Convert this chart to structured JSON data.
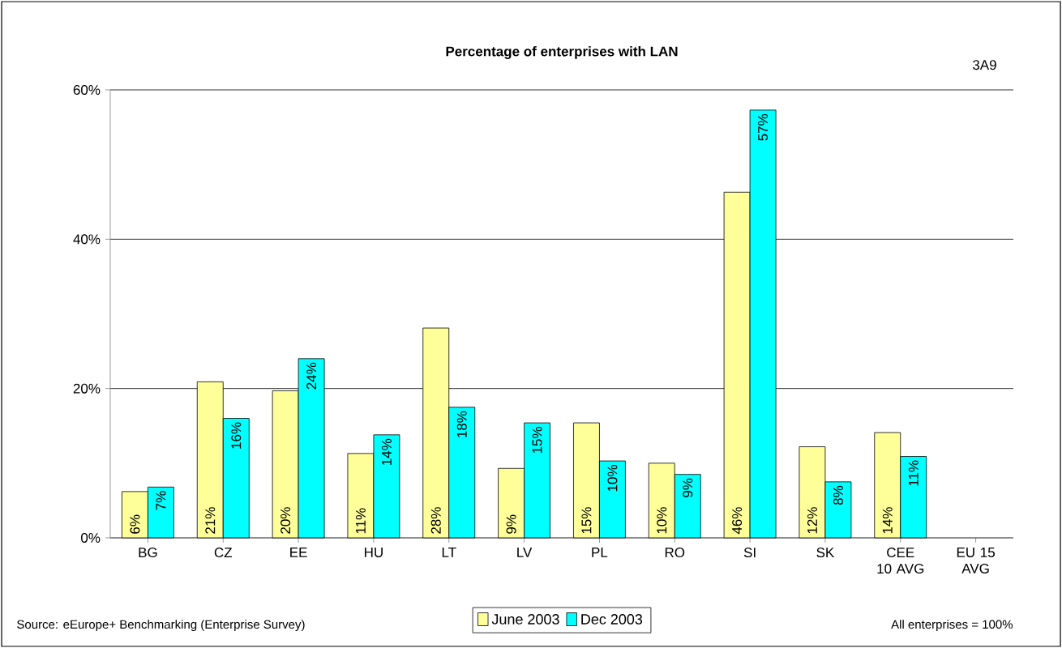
{
  "chart_data": {
    "type": "bar",
    "title": "Percentage of enterprises with LAN",
    "categories": [
      "BG",
      "CZ",
      "EE",
      "HU",
      "LT",
      "LV",
      "PL",
      "RO",
      "SI",
      "SK",
      "CEE 10 AVG",
      "EU 15 AVG"
    ],
    "series": [
      {
        "name": "June 2003",
        "color": "#ffff99",
        "values": [
          6.2,
          20.9,
          19.7,
          11.3,
          28.1,
          9.3,
          15.4,
          10.0,
          46.3,
          12.2,
          14.1,
          null
        ],
        "value_labels": [
          "6%",
          "21%",
          "20%",
          "11%",
          "28%",
          "9%",
          "15%",
          "10%",
          "46%",
          "12%",
          "14%",
          null
        ]
      },
      {
        "name": "Dec 2003",
        "color": "#00ffff",
        "values": [
          6.8,
          16.0,
          24.0,
          13.8,
          17.5,
          15.4,
          10.3,
          8.5,
          57.3,
          7.5,
          10.9,
          null
        ],
        "value_labels": [
          "7%",
          "16%",
          "24%",
          "14%",
          "18%",
          "15%",
          "10%",
          "9%",
          "57%",
          "8%",
          "11%",
          null
        ]
      }
    ],
    "ylim": [
      0,
      60
    ],
    "yticks": [
      {
        "value": 0,
        "label": "0%"
      },
      {
        "value": 20,
        "label": "20%"
      },
      {
        "value": 40,
        "label": "40%"
      },
      {
        "value": 60,
        "label": "60%"
      }
    ],
    "grid": "y",
    "legend": "bottom",
    "annotations": [
      "3A9",
      "Source: eEurope+ Benchmarking (Enterprise Survey)",
      "All enterprises = 100%"
    ]
  }
}
